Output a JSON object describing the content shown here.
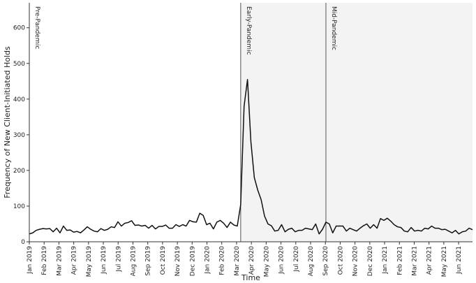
{
  "chart_data": {
    "type": "line",
    "xlabel": "Time",
    "ylabel": "Frequency of New Client-Initiated Holds",
    "ylim": [
      0,
      670
    ],
    "yticks": [
      0,
      100,
      200,
      300,
      400,
      500,
      600
    ],
    "x_tick_labels": [
      "Jan 2019",
      "Feb 2019",
      "Mar 2019",
      "Apr 2019",
      "May 2019",
      "Jun 2019",
      "Jul 2019",
      "Aug 2019",
      "Sep 2019",
      "Oct 2019",
      "Nov 2019",
      "Dec 2019",
      "Jan 2020",
      "Feb 2020",
      "Mar 2020",
      "Apr 2020",
      "May 2020",
      "Jun 2020",
      "Jul 2020",
      "Aug 2020",
      "Sep 2020",
      "Oct 2020",
      "Nov 2020",
      "Dec 2020",
      "Jan 2021",
      "Feb 2021",
      "Mar 2021",
      "Apr 2021",
      "May 2021",
      "Jun 2021"
    ],
    "periods": [
      {
        "label": "Pre-Pandemic",
        "start_week": 0,
        "shaded": false
      },
      {
        "label": "Early-Pandemic",
        "start_week": 62,
        "shaded": true
      },
      {
        "label": "Mid-Pandemic",
        "start_week": 87,
        "shaded": true
      }
    ],
    "series": [
      {
        "values": [
          22,
          25,
          32,
          35,
          37,
          36,
          37,
          28,
          38,
          25,
          44,
          32,
          33,
          27,
          29,
          25,
          33,
          42,
          35,
          30,
          28,
          37,
          32,
          35,
          42,
          40,
          56,
          44,
          52,
          54,
          59,
          46,
          47,
          44,
          46,
          38,
          46,
          36,
          43,
          43,
          47,
          38,
          38,
          48,
          43,
          48,
          44,
          60,
          56,
          55,
          80,
          74,
          48,
          52,
          36,
          55,
          60,
          52,
          40,
          55,
          47,
          44,
          104,
          380,
          455,
          280,
          180,
          145,
          118,
          72,
          50,
          45,
          30,
          32,
          48,
          28,
          35,
          38,
          28,
          32,
          32,
          38,
          36,
          34,
          50,
          22,
          35,
          55,
          50,
          25,
          44,
          44,
          44,
          30,
          38,
          34,
          30,
          38,
          45,
          50,
          38,
          48,
          38,
          65,
          60,
          66,
          58,
          48,
          42,
          40,
          30,
          28,
          40,
          30,
          32,
          30,
          38,
          36,
          44,
          38,
          38,
          34,
          35,
          30,
          25,
          32,
          22,
          28,
          30,
          38,
          34
        ]
      }
    ]
  }
}
